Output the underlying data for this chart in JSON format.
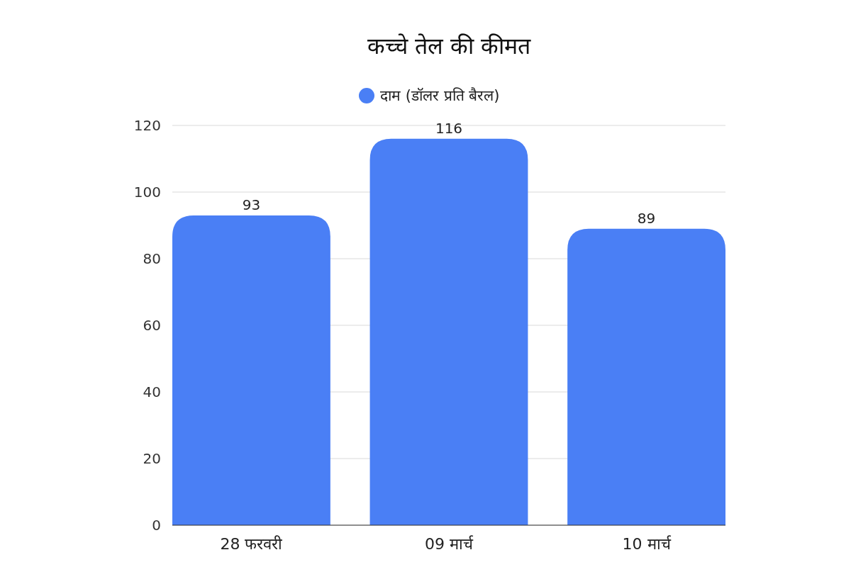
{
  "chart_data": {
    "type": "bar",
    "title": "कच्चे तेल की कीमत",
    "categories": [
      "28 फरवरी",
      "09 मार्च",
      "10 मार्च"
    ],
    "series": [
      {
        "name": "दाम (डॉलर प्रति बैरल)",
        "color": "#4a7ff5",
        "values": [
          93,
          116,
          89
        ]
      }
    ],
    "ylim": [
      0,
      120
    ],
    "yticks": [
      0,
      20,
      40,
      60,
      80,
      100,
      120
    ],
    "grid": "y",
    "legend": "top",
    "data_labels": true
  }
}
